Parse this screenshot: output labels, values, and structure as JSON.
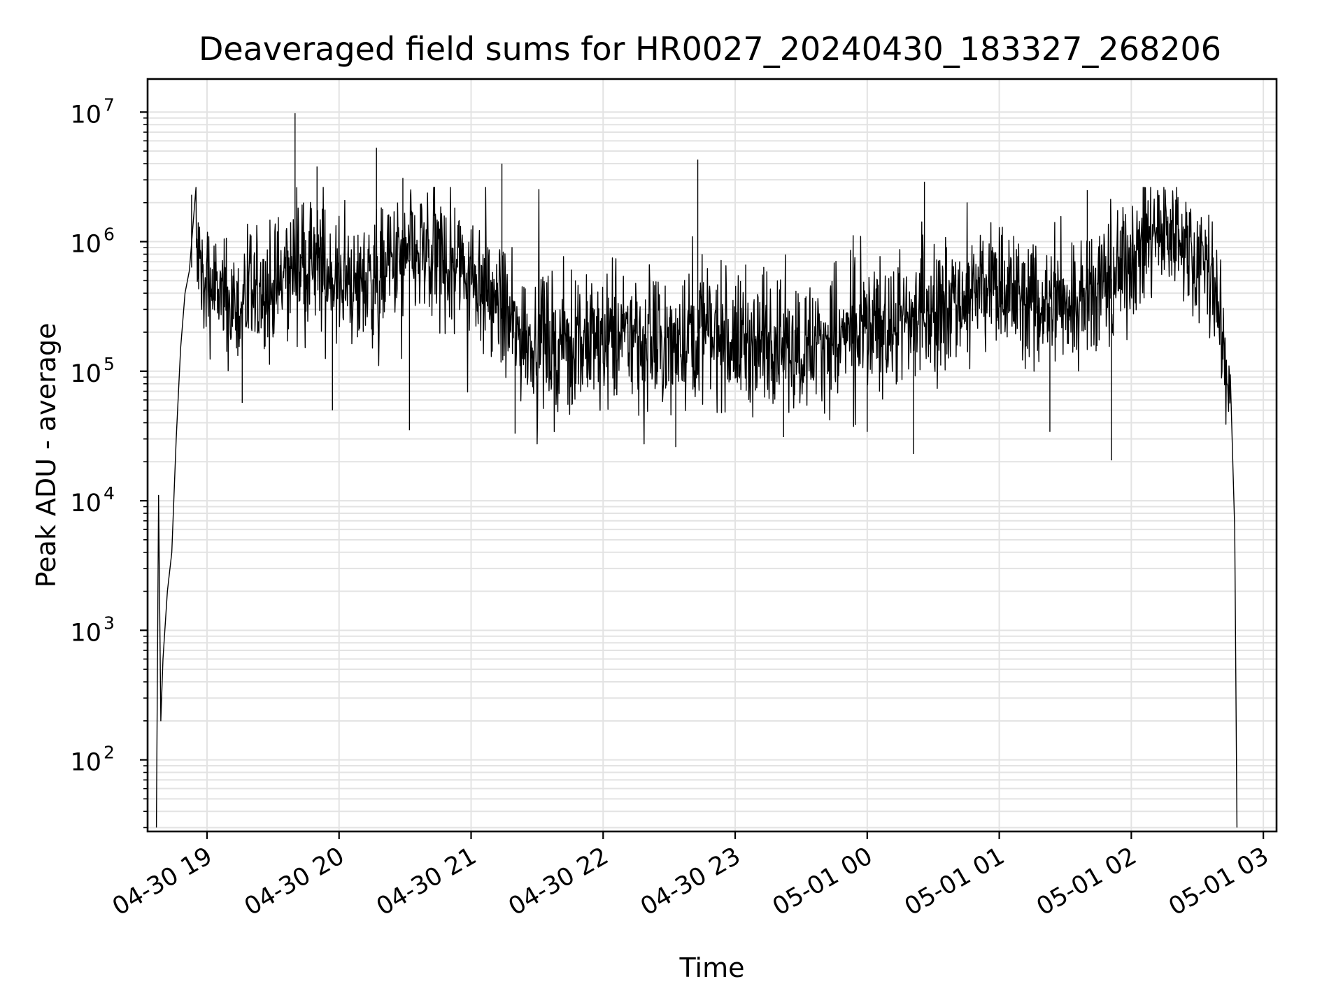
{
  "chart_data": {
    "type": "line",
    "title": "Deaveraged field sums for HR0027_20240430_183327_268206",
    "xlabel": "Time",
    "ylabel": "Peak ADU - average",
    "yscale": "log",
    "ylim": [
      28,
      18000000
    ],
    "xlim": [
      "2024-04-30 18:33",
      "2024-05-01 03:06"
    ],
    "grid": "on (major and minor)",
    "x_ticks": [
      "04-30 19",
      "04-30 20",
      "04-30 21",
      "04-30 22",
      "04-30 23",
      "05-01 00",
      "05-01 01",
      "05-01 02",
      "05-01 03"
    ],
    "y_ticks": [
      {
        "base": "10",
        "exp": "2",
        "value": 100
      },
      {
        "base": "10",
        "exp": "3",
        "value": 1000
      },
      {
        "base": "10",
        "exp": "4",
        "value": 10000
      },
      {
        "base": "10",
        "exp": "5",
        "value": 100000
      },
      {
        "base": "10",
        "exp": "6",
        "value": 1000000
      },
      {
        "base": "10",
        "exp": "7",
        "value": 10000000
      }
    ],
    "series": [
      {
        "color": "#000000",
        "x": [
          "2024-04-30 18:37",
          "2024-04-30 18:38",
          "2024-04-30 18:39",
          "2024-04-30 18:40",
          "2024-04-30 18:42",
          "2024-04-30 18:44",
          "2024-04-30 18:46",
          "2024-04-30 18:48",
          "2024-04-30 18:50",
          "2024-04-30 18:52",
          "2024-04-30 18:55",
          "2024-04-30 19:00",
          "2024-04-30 19:10",
          "2024-04-30 19:20",
          "2024-04-30 19:30",
          "2024-04-30 19:40",
          "2024-04-30 19:50",
          "2024-04-30 20:00",
          "2024-04-30 20:10",
          "2024-04-30 20:20",
          "2024-04-30 20:30",
          "2024-04-30 20:40",
          "2024-04-30 20:50",
          "2024-04-30 21:00",
          "2024-04-30 21:10",
          "2024-04-30 21:20",
          "2024-04-30 21:30",
          "2024-04-30 21:40",
          "2024-04-30 21:50",
          "2024-04-30 22:00",
          "2024-04-30 22:10",
          "2024-04-30 22:20",
          "2024-04-30 22:30",
          "2024-04-30 22:40",
          "2024-04-30 22:50",
          "2024-04-30 23:00",
          "2024-04-30 23:10",
          "2024-04-30 23:20",
          "2024-04-30 23:30",
          "2024-04-30 23:40",
          "2024-04-30 23:50",
          "2024-05-01 00:00",
          "2024-05-01 00:10",
          "2024-05-01 00:20",
          "2024-05-01 00:30",
          "2024-05-01 00:40",
          "2024-05-01 00:50",
          "2024-05-01 01:00",
          "2024-05-01 01:10",
          "2024-05-01 01:20",
          "2024-05-01 01:30",
          "2024-05-01 01:40",
          "2024-05-01 01:50",
          "2024-05-01 02:00",
          "2024-05-01 02:10",
          "2024-05-01 02:20",
          "2024-05-01 02:30",
          "2024-05-01 02:36",
          "2024-05-01 02:40",
          "2024-05-01 02:43",
          "2024-05-01 02:45",
          "2024-05-01 02:47",
          "2024-05-01 02:48"
        ],
        "y": [
          30,
          11000,
          200,
          600,
          2000,
          4000,
          30000,
          150000,
          400000,
          600000,
          700000,
          500000,
          300000,
          350000,
          400000,
          700000,
          600000,
          500000,
          450000,
          600000,
          700000,
          800000,
          700000,
          600000,
          350000,
          200000,
          180000,
          170000,
          160000,
          170000,
          180000,
          170000,
          160000,
          200000,
          190000,
          170000,
          160000,
          170000,
          160000,
          170000,
          180000,
          200000,
          220000,
          250000,
          300000,
          350000,
          400000,
          450000,
          350000,
          300000,
          350000,
          450000,
          500000,
          700000,
          1200000,
          1100000,
          800000,
          600000,
          300000,
          100000,
          40000,
          6000,
          30
        ],
        "spikes_high": [
          [
            "2024-04-30 18:53",
            2300000
          ],
          [
            "2024-04-30 19:40",
            9800000
          ],
          [
            "2024-04-30 19:50",
            3800000
          ],
          [
            "2024-04-30 20:17",
            5300000
          ],
          [
            "2024-04-30 20:29",
            3100000
          ],
          [
            "2024-04-30 21:14",
            4000000
          ],
          [
            "2024-04-30 22:43",
            4300000
          ],
          [
            "2024-05-01 00:26",
            2900000
          ],
          [
            "2024-05-01 01:40",
            2500000
          ],
          [
            "2024-05-01 02:12",
            2500000
          ]
        ],
        "spikes_low": [
          [
            "2024-04-30 19:16",
            57000
          ],
          [
            "2024-04-30 19:57",
            50000
          ],
          [
            "2024-04-30 20:32",
            35000
          ],
          [
            "2024-04-30 21:20",
            33000
          ],
          [
            "2024-04-30 22:33",
            26000
          ],
          [
            "2024-04-30 23:22",
            31000
          ],
          [
            "2024-05-01 00:00",
            34000
          ],
          [
            "2024-05-01 00:21",
            23000
          ],
          [
            "2024-05-01 01:23",
            34000
          ],
          [
            "2024-05-01 01:51",
            20500
          ]
        ],
        "noise_band_low": 55000,
        "noise_band_high": 2500000
      }
    ]
  }
}
